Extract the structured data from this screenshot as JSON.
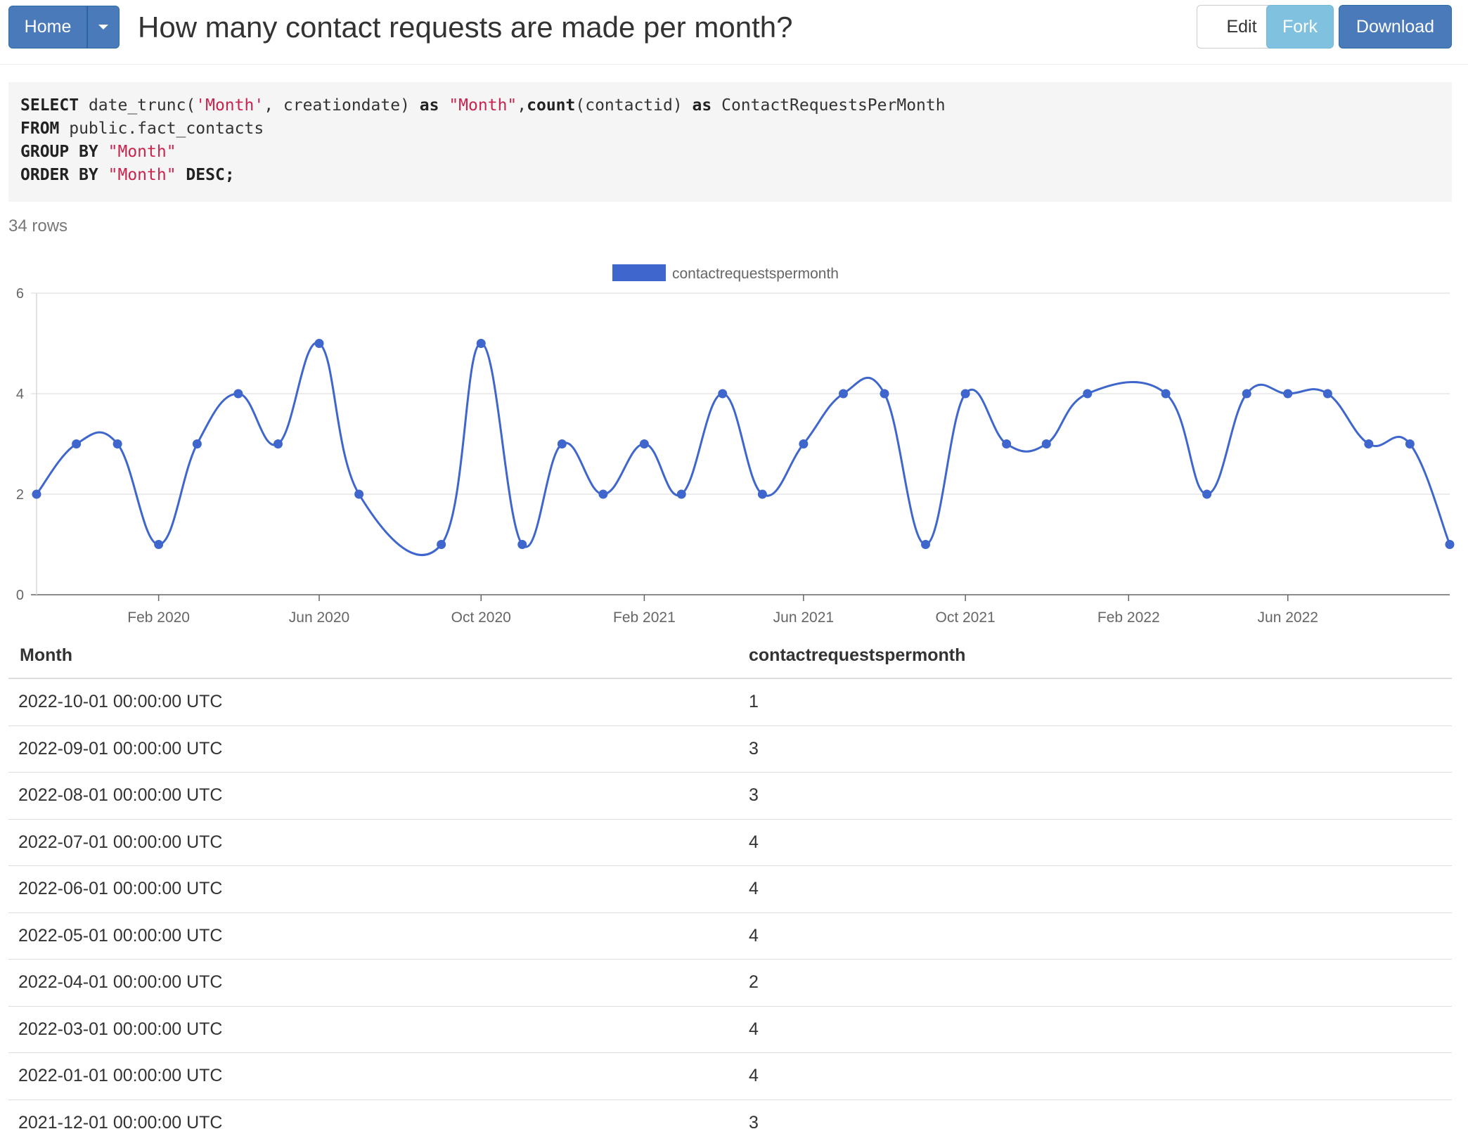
{
  "header": {
    "home_label": "Home",
    "title": "How many contact requests are made per month?",
    "edit_label": "Edit",
    "fork_label": "Fork",
    "download_label": "Download"
  },
  "sql": {
    "lines": [
      [
        {
          "t": "SELECT",
          "k": "kw"
        },
        {
          "t": " date_trunc(",
          "k": "plain"
        },
        {
          "t": "'Month'",
          "k": "str"
        },
        {
          "t": ", creationdate) ",
          "k": "plain"
        },
        {
          "t": "as",
          "k": "kw"
        },
        {
          "t": " ",
          "k": "plain"
        },
        {
          "t": "\"Month\"",
          "k": "str"
        },
        {
          "t": ",",
          "k": "plain"
        },
        {
          "t": "count",
          "k": "kw"
        },
        {
          "t": "(contactid) ",
          "k": "plain"
        },
        {
          "t": "as",
          "k": "kw"
        },
        {
          "t": " ContactRequestsPerMonth",
          "k": "plain"
        }
      ],
      [
        {
          "t": "FROM",
          "k": "kw"
        },
        {
          "t": " public.fact_contacts",
          "k": "plain"
        }
      ],
      [
        {
          "t": "GROUP BY",
          "k": "kw"
        },
        {
          "t": " ",
          "k": "plain"
        },
        {
          "t": "\"Month\"",
          "k": "str"
        }
      ],
      [
        {
          "t": "ORDER BY",
          "k": "kw"
        },
        {
          "t": " ",
          "k": "plain"
        },
        {
          "t": "\"Month\"",
          "k": "str"
        },
        {
          "t": " DESC;",
          "k": "kw"
        }
      ]
    ]
  },
  "row_count_text": "34 rows",
  "chart_data": {
    "type": "line",
    "legend": [
      "contactrequestspermonth"
    ],
    "legend_position": "top",
    "series": [
      {
        "name": "contactrequestspermonth",
        "x": [
          "2019-11-01",
          "2019-12-01",
          "2020-01-01",
          "2020-02-01",
          "2020-03-01",
          "2020-04-01",
          "2020-05-01",
          "2020-06-01",
          "2020-07-01",
          "2020-09-01",
          "2020-10-01",
          "2020-11-01",
          "2020-12-01",
          "2021-01-01",
          "2021-02-01",
          "2021-03-01",
          "2021-04-01",
          "2021-05-01",
          "2021-06-01",
          "2021-07-01",
          "2021-08-01",
          "2021-09-01",
          "2021-10-01",
          "2021-11-01",
          "2021-12-01",
          "2022-01-01",
          "2022-03-01",
          "2022-04-01",
          "2022-05-01",
          "2022-06-01",
          "2022-07-01",
          "2022-08-01",
          "2022-09-01",
          "2022-10-01"
        ],
        "values": [
          2,
          3,
          3,
          1,
          3,
          4,
          3,
          5,
          2,
          1,
          5,
          1,
          3,
          2,
          3,
          2,
          4,
          2,
          3,
          4,
          4,
          1,
          4,
          3,
          3,
          4,
          4,
          2,
          4,
          4,
          4,
          3,
          3,
          1
        ]
      }
    ],
    "x_ticks": [
      "Feb 2020",
      "Jun 2020",
      "Oct 2020",
      "Feb 2021",
      "Jun 2021",
      "Oct 2021",
      "Feb 2022",
      "Jun 2022"
    ],
    "x_tick_dates": [
      "2020-02-01",
      "2020-06-01",
      "2020-10-01",
      "2021-02-01",
      "2021-06-01",
      "2021-10-01",
      "2022-02-01",
      "2022-06-01"
    ],
    "x_range": [
      "2019-11-01",
      "2022-10-01"
    ],
    "y_ticks": [
      "0",
      "2",
      "4",
      "6"
    ],
    "ylim": [
      0,
      6
    ],
    "grid": true,
    "line_color": "#3e66cc"
  },
  "table": {
    "headers": [
      "Month",
      "contactrequestspermonth"
    ],
    "rows": [
      [
        "2022-10-01 00:00:00 UTC",
        "1"
      ],
      [
        "2022-09-01 00:00:00 UTC",
        "3"
      ],
      [
        "2022-08-01 00:00:00 UTC",
        "3"
      ],
      [
        "2022-07-01 00:00:00 UTC",
        "4"
      ],
      [
        "2022-06-01 00:00:00 UTC",
        "4"
      ],
      [
        "2022-05-01 00:00:00 UTC",
        "4"
      ],
      [
        "2022-04-01 00:00:00 UTC",
        "2"
      ],
      [
        "2022-03-01 00:00:00 UTC",
        "4"
      ],
      [
        "2022-01-01 00:00:00 UTC",
        "4"
      ],
      [
        "2021-12-01 00:00:00 UTC",
        "3"
      ]
    ]
  }
}
